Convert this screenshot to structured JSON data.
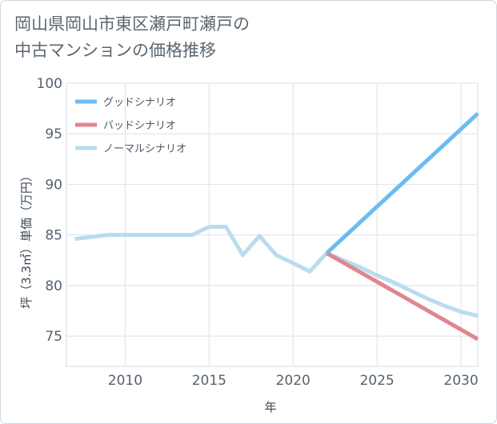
{
  "title_line1": "岡山県岡山市東区瀬戸町瀬戸の",
  "title_line2": "中古マンションの価格推移",
  "chart_data": {
    "type": "line",
    "title": "岡山県岡山市東区瀬戸町瀬戸の中古マンションの価格推移",
    "xlabel": "年",
    "ylabel": "坪（3.3㎡）単価（万円）",
    "xlim": [
      2006.5,
      2031
    ],
    "ylim": [
      72,
      100
    ],
    "xticks": [
      2010,
      2015,
      2020,
      2025,
      2030
    ],
    "yticks": [
      75,
      80,
      85,
      90,
      95,
      100
    ],
    "grid": true,
    "legend_position": "top-left",
    "series": [
      {
        "name": "グッドシナリオ",
        "color": "#6bbcf0",
        "x": [
          2022,
          2031
        ],
        "values": [
          83.2,
          97.0
        ]
      },
      {
        "name": "バッドシナリオ",
        "color": "#e0868f",
        "x": [
          2022,
          2031
        ],
        "values": [
          83.2,
          74.7
        ]
      },
      {
        "name": "ノーマルシナリオ",
        "color": "#b9dcee",
        "x": [
          2007,
          2009,
          2010,
          2011,
          2012,
          2013,
          2014,
          2015,
          2016,
          2017,
          2018,
          2019,
          2020,
          2021,
          2022,
          2023,
          2024,
          2025,
          2026,
          2027,
          2028,
          2029,
          2030,
          2031
        ],
        "values": [
          84.6,
          85.0,
          85.0,
          85.0,
          85.0,
          85.0,
          85.0,
          85.8,
          85.8,
          83.0,
          84.9,
          83.0,
          82.2,
          81.4,
          83.2,
          82.5,
          81.8,
          81.0,
          80.3,
          79.5,
          78.7,
          78.0,
          77.4,
          77.0
        ]
      }
    ]
  }
}
